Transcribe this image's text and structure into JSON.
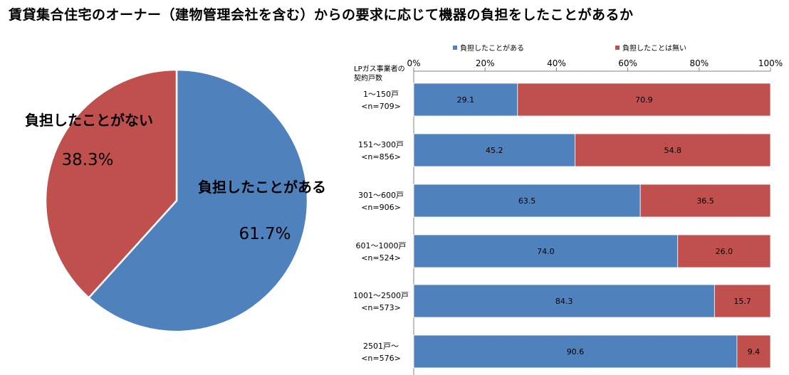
{
  "title": "賃貸集合住宅のオーナー（建物管理会社を含む）からの要求に応じて機器の負担をしたことがあるか",
  "colors": {
    "blue": "#4f81bd",
    "red": "#c0504d"
  },
  "chart_data": [
    {
      "type": "pie",
      "title": "",
      "slices": [
        {
          "label": "負担したことがある",
          "value": 61.7,
          "display": "61.7%",
          "color": "#4f81bd"
        },
        {
          "label": "負担したことがない",
          "value": 38.3,
          "display": "38.3%",
          "color": "#c0504d"
        }
      ]
    },
    {
      "type": "bar",
      "orientation": "horizontal",
      "stacked": "100%",
      "axis_title": "LPガス事業者の契約戸数",
      "xlim": [
        0,
        100
      ],
      "ticks": [
        "0%",
        "20%",
        "40%",
        "60%",
        "80%",
        "100%"
      ],
      "tick_values": [
        0,
        20,
        40,
        60,
        80,
        100
      ],
      "legend": [
        "負担したことがある",
        "負担したことは無い"
      ],
      "legend_position": "top",
      "categories": [
        [
          "1～150戸",
          "<n=709>"
        ],
        [
          "151～300戸",
          "<n=856>"
        ],
        [
          "301～600戸",
          "<n=906>"
        ],
        [
          "601～1000戸",
          "<n=524>"
        ],
        [
          "1001～2500戸",
          "<n=573>"
        ],
        [
          "2501戸～",
          "<n=576>"
        ]
      ],
      "series": [
        {
          "name": "負担したことがある",
          "color": "#4f81bd",
          "values": [
            29.1,
            45.2,
            63.5,
            74.0,
            84.3,
            90.6
          ],
          "labels": [
            "29.1",
            "45.2",
            "63.5",
            "74.0",
            "84.3",
            "90.6"
          ]
        },
        {
          "name": "負担したことは無い",
          "color": "#c0504d",
          "values": [
            70.9,
            54.8,
            36.5,
            26.0,
            15.7,
            9.4
          ],
          "labels": [
            "70.9",
            "54.8",
            "36.5",
            "26.0",
            "15.7",
            "9.4"
          ]
        }
      ]
    }
  ]
}
